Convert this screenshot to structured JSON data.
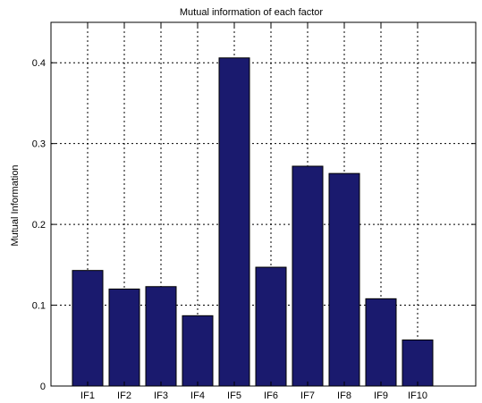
{
  "chart_data": {
    "type": "bar",
    "title": "Mutual information of each factor",
    "xlabel": "",
    "ylabel": "Mutual Information",
    "categories": [
      "IF1",
      "IF2",
      "IF3",
      "IF4",
      "IF5",
      "IF6",
      "IF7",
      "IF8",
      "IF9",
      "IF10"
    ],
    "values": [
      0.143,
      0.12,
      0.123,
      0.087,
      0.406,
      0.147,
      0.272,
      0.263,
      0.108,
      0.057
    ],
    "ylim": [
      0,
      0.45
    ],
    "yticks": [
      0,
      0.1,
      0.2,
      0.3,
      0.4
    ],
    "ytick_labels": [
      "0",
      "0.1",
      "0.2",
      "0.3",
      "0.4"
    ],
    "grid": true,
    "bar_color": "#1a1a6e"
  }
}
